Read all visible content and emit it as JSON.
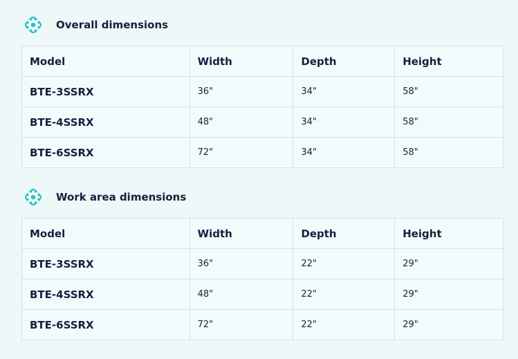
{
  "accent": "#22c3c8",
  "sections": [
    {
      "title": "Overall dimensions",
      "icon": "gear-icon",
      "headers": [
        "Model",
        "Width",
        "Depth",
        "Height"
      ],
      "rows": [
        [
          "BTE-3SSRX",
          "36\"",
          "34\"",
          "58\""
        ],
        [
          "BTE-4SSRX",
          "48\"",
          "34\"",
          "58\""
        ],
        [
          "BTE-6SSRX",
          "72\"",
          "34\"",
          "58\""
        ]
      ]
    },
    {
      "title": "Work area dimensions",
      "icon": "gear-icon",
      "headers": [
        "Model",
        "Width",
        "Depth",
        "Height"
      ],
      "rows": [
        [
          "BTE-3SSRX",
          "36\"",
          "22\"",
          "29\""
        ],
        [
          "BTE-4SSRX",
          "48\"",
          "22\"",
          "29\""
        ],
        [
          "BTE-6SSRX",
          "72\"",
          "22\"",
          "29\""
        ]
      ]
    }
  ]
}
